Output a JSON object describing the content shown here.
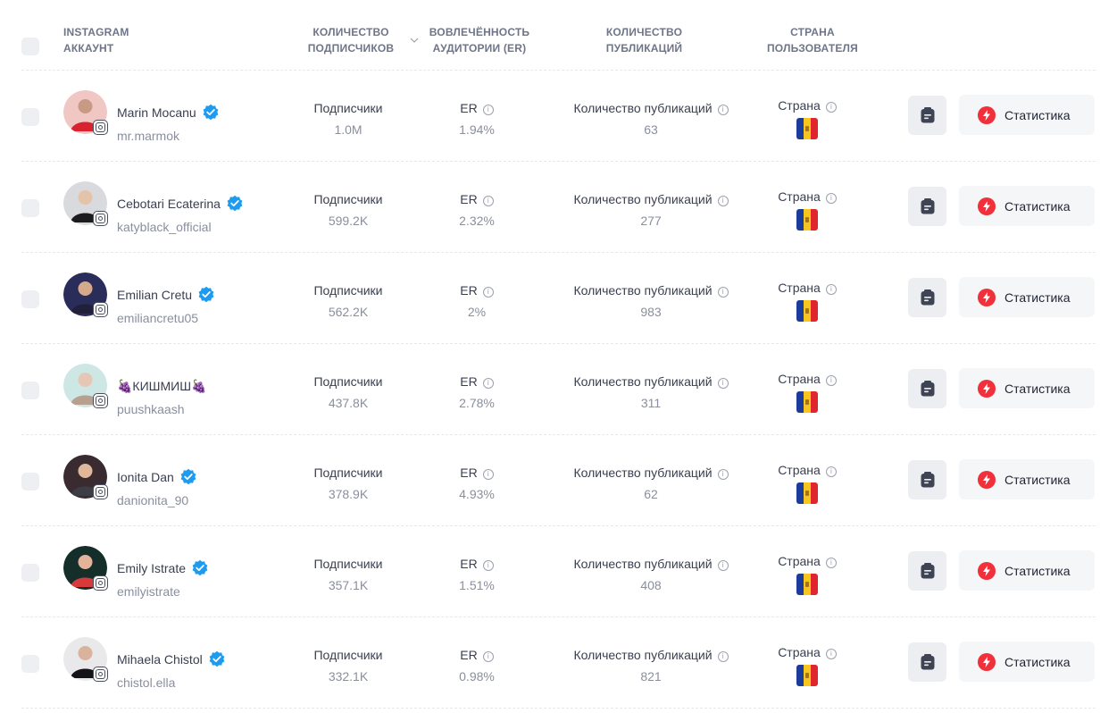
{
  "header": {
    "account": "INSTAGRAM АККАУНТ",
    "followers": "КОЛИЧЕСТВО ПОДПИСЧИКОВ",
    "engagement": "ВОВЛЕЧЁННОСТЬ АУДИТОРИИ (ER)",
    "posts": "КОЛИЧЕСТВО ПУБЛИКАЦИЙ",
    "country": "СТРАНА ПОЛЬЗОВАТЕЛЯ",
    "sort_icon": "chevron-down-icon"
  },
  "labels": {
    "followers": "Подписчики",
    "er": "ER",
    "posts": "Количество публикаций",
    "country": "Страна",
    "stats_button": "Статистика"
  },
  "colors": {
    "verified": "#1d9bf0",
    "stat_icon": "#f0303a",
    "flag_blue": "#1b3c9a",
    "flag_yellow": "#f7c51f",
    "flag_red": "#e0262d"
  },
  "rows": [
    {
      "name": "Marin Mocanu",
      "verified": true,
      "handle": "mr.marmok",
      "followers": "1.0M",
      "er": "1.94%",
      "posts": "63",
      "country_flag": "moldova-flag"
    },
    {
      "name": "Cebotari Ecaterina",
      "verified": true,
      "handle": "katyblack_official",
      "followers": "599.2K",
      "er": "2.32%",
      "posts": "277",
      "country_flag": "moldova-flag"
    },
    {
      "name": "Emilian Cretu",
      "verified": true,
      "handle": "emiliancretu05",
      "followers": "562.2K",
      "er": "2%",
      "posts": "983",
      "country_flag": "moldova-flag"
    },
    {
      "name": "🍇КИШМИШ🍇",
      "verified": false,
      "handle": "puushkaash",
      "followers": "437.8K",
      "er": "2.78%",
      "posts": "311",
      "country_flag": "moldova-flag"
    },
    {
      "name": "Ionita Dan",
      "verified": true,
      "handle": "danionita_90",
      "followers": "378.9K",
      "er": "4.93%",
      "posts": "62",
      "country_flag": "moldova-flag"
    },
    {
      "name": "Emily Istrate",
      "verified": true,
      "handle": "emilyistrate",
      "followers": "357.1K",
      "er": "1.51%",
      "posts": "408",
      "country_flag": "moldova-flag"
    },
    {
      "name": "Mihaela Chistol",
      "verified": true,
      "handle": "chistol.ella",
      "followers": "332.1K",
      "er": "0.98%",
      "posts": "821",
      "country_flag": "moldova-flag"
    }
  ]
}
